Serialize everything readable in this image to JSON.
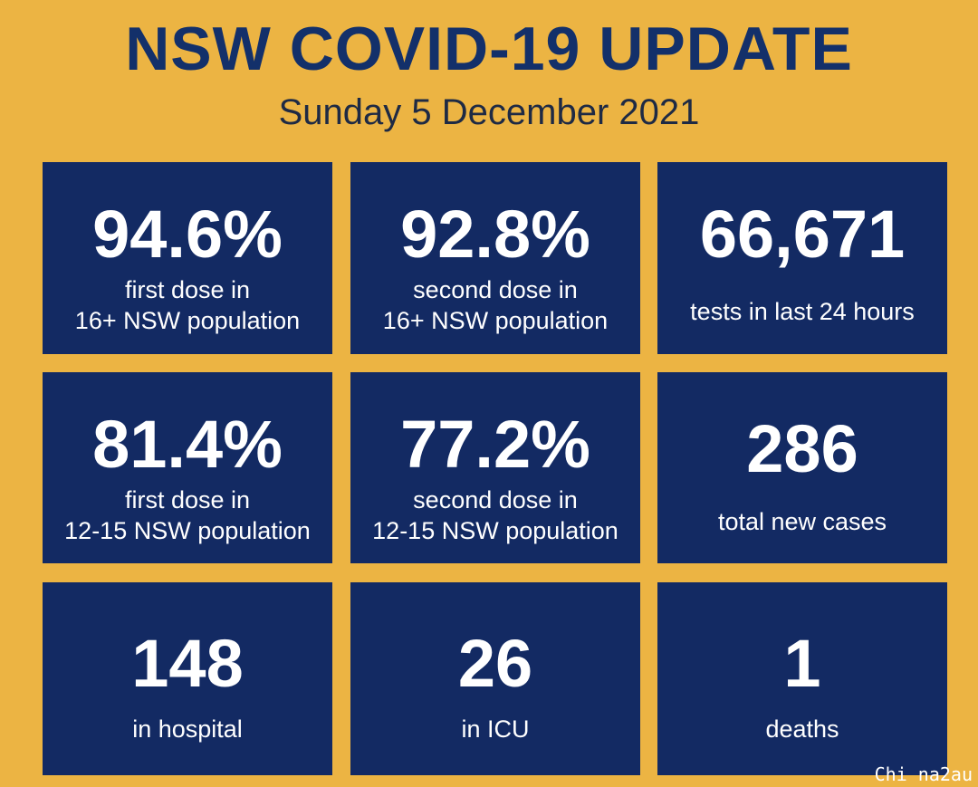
{
  "header": {
    "title": "NSW COVID-19 UPDATE",
    "date": "Sunday 5 December 2021"
  },
  "tiles": [
    {
      "value": "94.6%",
      "label_line1": "first dose in",
      "label_line2": "16+ NSW population"
    },
    {
      "value": "92.8%",
      "label_line1": "second dose in",
      "label_line2": "16+ NSW population"
    },
    {
      "value": "66,671",
      "label_line1": "tests in last 24 hours"
    },
    {
      "value": "81.4%",
      "label_line1": "first dose in",
      "label_line2": "12-15 NSW population"
    },
    {
      "value": "77.2%",
      "label_line1": "second dose in",
      "label_line2": "12-15 NSW population"
    },
    {
      "value": "286",
      "label_line1": "total new cases"
    },
    {
      "value": "148",
      "label_line1": "in hospital"
    },
    {
      "value": "26",
      "label_line1": "in ICU"
    },
    {
      "value": "1",
      "label_line1": "deaths"
    }
  ],
  "watermark": "Chi na2au",
  "colors": {
    "background": "#ECB443",
    "tile": "#132A63",
    "title": "#13306A",
    "text": "#FFFFFF"
  }
}
